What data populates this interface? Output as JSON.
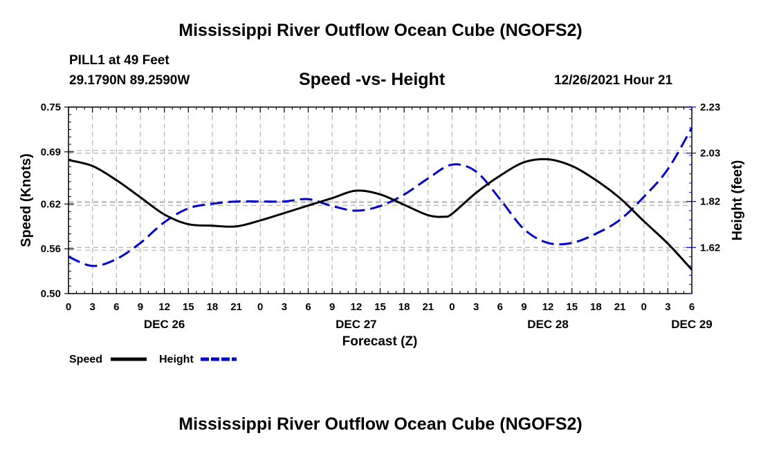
{
  "page": {
    "title_top": "Mississippi River Outflow Ocean Cube (NGOFS2)",
    "title_bottom": "Mississippi River Outflow Ocean Cube (NGOFS2)",
    "station": "PILL1 at 49 Feet",
    "coords": "29.1790N  89.2590W",
    "subtitle": "Speed -vs- Height",
    "timestamp": "12/26/2021 Hour 21"
  },
  "colors": {
    "speed": "#000000",
    "height": "#0000cc",
    "grid": "#b4b4b4"
  },
  "chart_data": {
    "type": "line",
    "title": "Speed -vs- Height",
    "xlabel": "Forecast (Z)",
    "ylabel": "Speed (Knots)",
    "y2label": "Height (feet)",
    "x_start_hour": 0,
    "x_end_hour": 78,
    "x_tick_step_hours": 3,
    "xtick_labels": [
      "0",
      "3",
      "6",
      "9",
      "12",
      "15",
      "18",
      "21",
      "0",
      "3",
      "6",
      "9",
      "12",
      "15",
      "18",
      "21",
      "0",
      "3",
      "6",
      "9",
      "12",
      "15",
      "18",
      "21",
      "0",
      "3",
      "6"
    ],
    "date_labels": [
      {
        "hour": 12,
        "label": "DEC 26"
      },
      {
        "hour": 36,
        "label": "DEC 27"
      },
      {
        "hour": 60,
        "label": "DEC 28"
      },
      {
        "hour": 78,
        "label": "DEC 29"
      }
    ],
    "ylim": [
      0.5,
      0.75
    ],
    "yticks": [
      "0.50",
      "0.56",
      "0.62",
      "0.69",
      "0.75"
    ],
    "y2lim": [
      1.42,
      2.23
    ],
    "y2ticks": [
      "1.62",
      "1.82",
      "2.03",
      "2.23"
    ],
    "grid": true,
    "legend_position": "bottom-left",
    "series": [
      {
        "name": "Speed",
        "axis": "left",
        "style": "solid",
        "x": [
          0,
          3,
          6,
          9,
          12,
          15,
          18,
          21,
          24,
          27,
          30,
          33,
          36,
          39,
          42,
          45,
          47,
          48,
          51,
          54,
          57,
          60,
          63,
          66,
          69,
          72,
          75,
          78
        ],
        "values": [
          0.679,
          0.671,
          0.652,
          0.629,
          0.606,
          0.593,
          0.591,
          0.59,
          0.598,
          0.608,
          0.618,
          0.628,
          0.638,
          0.633,
          0.619,
          0.605,
          0.603,
          0.607,
          0.635,
          0.658,
          0.676,
          0.68,
          0.671,
          0.652,
          0.628,
          0.597,
          0.567,
          0.532
        ]
      },
      {
        "name": "Height",
        "axis": "right",
        "style": "dashed",
        "x": [
          0,
          3,
          6,
          9,
          12,
          15,
          18,
          21,
          24,
          27,
          30,
          33,
          36,
          39,
          42,
          45,
          48,
          51,
          54,
          57,
          60,
          63,
          66,
          69,
          72,
          75,
          78
        ],
        "values": [
          1.58,
          1.54,
          1.57,
          1.64,
          1.73,
          1.79,
          1.81,
          1.82,
          1.82,
          1.82,
          1.83,
          1.8,
          1.78,
          1.8,
          1.85,
          1.92,
          1.98,
          1.95,
          1.83,
          1.7,
          1.64,
          1.64,
          1.68,
          1.74,
          1.84,
          1.96,
          2.14
        ]
      }
    ]
  }
}
